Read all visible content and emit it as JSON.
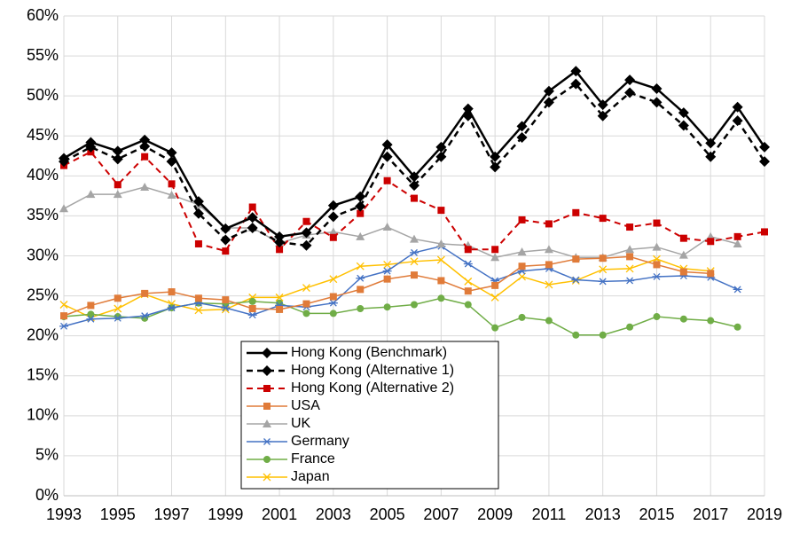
{
  "chart_data": {
    "type": "line",
    "x": [
      1993,
      1994,
      1995,
      1996,
      1997,
      1998,
      1999,
      2000,
      2001,
      2002,
      2003,
      2004,
      2005,
      2006,
      2007,
      2008,
      2009,
      2010,
      2011,
      2012,
      2013,
      2014,
      2015,
      2016,
      2017,
      2018,
      2019
    ],
    "xlim": [
      1993,
      2019
    ],
    "xticks": [
      1993,
      1995,
      1997,
      1999,
      2001,
      2003,
      2005,
      2007,
      2009,
      2011,
      2013,
      2015,
      2017,
      2019
    ],
    "ylim": [
      0,
      60
    ],
    "yticks": [
      {
        "value": 0,
        "label": "0%"
      },
      {
        "value": 5,
        "label": "5%"
      },
      {
        "value": 10,
        "label": "10%"
      },
      {
        "value": 15,
        "label": "15%"
      },
      {
        "value": 20,
        "label": "20%"
      },
      {
        "value": 25,
        "label": "25%"
      },
      {
        "value": 30,
        "label": "30%"
      },
      {
        "value": 35,
        "label": "35%"
      },
      {
        "value": 40,
        "label": "40%"
      },
      {
        "value": 45,
        "label": "45%"
      },
      {
        "value": 50,
        "label": "50%"
      },
      {
        "value": 55,
        "label": "55%"
      },
      {
        "value": 60,
        "label": "60%"
      }
    ],
    "grid": true,
    "legend": "lower center",
    "series": [
      {
        "name": "Hong Kong (Benchmark)",
        "color": "#000000",
        "marker": "diamond",
        "dashed": false,
        "values": [
          42.2,
          44.2,
          43.1,
          44.5,
          42.9,
          36.8,
          33.4,
          34.8,
          32.4,
          32.9,
          36.3,
          37.4,
          43.9,
          39.9,
          43.6,
          48.4,
          42.4,
          46.2,
          50.6,
          53.1,
          48.9,
          52.0,
          50.9,
          47.9,
          44.1,
          48.6,
          43.6
        ]
      },
      {
        "name": "Hong Kong (Alternative 1)",
        "color": "#000000",
        "marker": "diamond",
        "dashed": true,
        "values": [
          41.8,
          43.6,
          42.1,
          43.7,
          41.8,
          35.3,
          32.0,
          33.5,
          31.7,
          31.3,
          34.9,
          36.2,
          42.4,
          38.8,
          42.4,
          47.5,
          41.1,
          44.8,
          49.2,
          51.5,
          47.5,
          50.4,
          49.2,
          46.3,
          42.4,
          46.9,
          41.8
        ]
      },
      {
        "name": "Hong Kong (Alternative 2)",
        "color": "#cc0000",
        "marker": "square",
        "dashed": true,
        "values": [
          41.3,
          43.0,
          38.9,
          42.4,
          39.0,
          31.5,
          30.6,
          36.1,
          30.8,
          34.3,
          32.3,
          35.3,
          39.4,
          37.2,
          35.7,
          30.8,
          30.8,
          34.5,
          34.0,
          35.4,
          34.7,
          33.6,
          34.1,
          32.2,
          31.8,
          32.4,
          33.0
        ]
      },
      {
        "name": "USA",
        "color": "#e07b39",
        "marker": "square",
        "dashed": false,
        "values": [
          22.5,
          23.8,
          24.7,
          25.3,
          25.5,
          24.7,
          24.5,
          23.4,
          23.3,
          24.0,
          24.9,
          25.8,
          27.1,
          27.6,
          26.9,
          25.6,
          26.3,
          28.7,
          28.9,
          29.6,
          29.7,
          29.9,
          28.9,
          28.0,
          27.8,
          null,
          null
        ]
      },
      {
        "name": "UK",
        "color": "#a5a5a5",
        "marker": "triangle",
        "dashed": false,
        "values": [
          35.9,
          37.7,
          37.7,
          38.6,
          37.6,
          36.4,
          33.5,
          33.5,
          31.6,
          32.6,
          33.0,
          32.4,
          33.6,
          32.1,
          31.5,
          31.3,
          29.8,
          30.5,
          30.8,
          29.8,
          29.8,
          30.8,
          31.1,
          30.1,
          32.4,
          31.5,
          null
        ]
      },
      {
        "name": "Germany",
        "color": "#4472c4",
        "marker": "asterisk",
        "dashed": false,
        "values": [
          21.2,
          22.1,
          22.2,
          22.5,
          23.5,
          24.1,
          23.5,
          22.6,
          23.8,
          23.6,
          24.1,
          27.2,
          28.1,
          30.4,
          31.2,
          29.0,
          26.9,
          28.1,
          28.4,
          27.0,
          26.8,
          26.9,
          27.4,
          27.5,
          27.3,
          25.8,
          null
        ]
      },
      {
        "name": "France",
        "color": "#70ad47",
        "marker": "circle",
        "dashed": false,
        "values": [
          22.4,
          22.7,
          22.4,
          22.2,
          23.5,
          24.1,
          24.0,
          24.3,
          24.1,
          22.8,
          22.8,
          23.4,
          23.6,
          23.9,
          24.7,
          23.9,
          21.0,
          22.3,
          21.9,
          20.1,
          20.1,
          21.1,
          22.4,
          22.1,
          21.9,
          21.1,
          null
        ]
      },
      {
        "name": "Japan",
        "color": "#ffc000",
        "marker": "x",
        "dashed": false,
        "values": [
          23.9,
          22.3,
          23.4,
          25.2,
          24.0,
          23.2,
          23.3,
          24.8,
          24.8,
          26.0,
          27.1,
          28.7,
          28.9,
          29.3,
          29.5,
          26.8,
          24.8,
          27.4,
          26.4,
          26.9,
          28.3,
          28.4,
          29.6,
          28.4,
          28.1,
          null,
          null
        ]
      }
    ]
  }
}
